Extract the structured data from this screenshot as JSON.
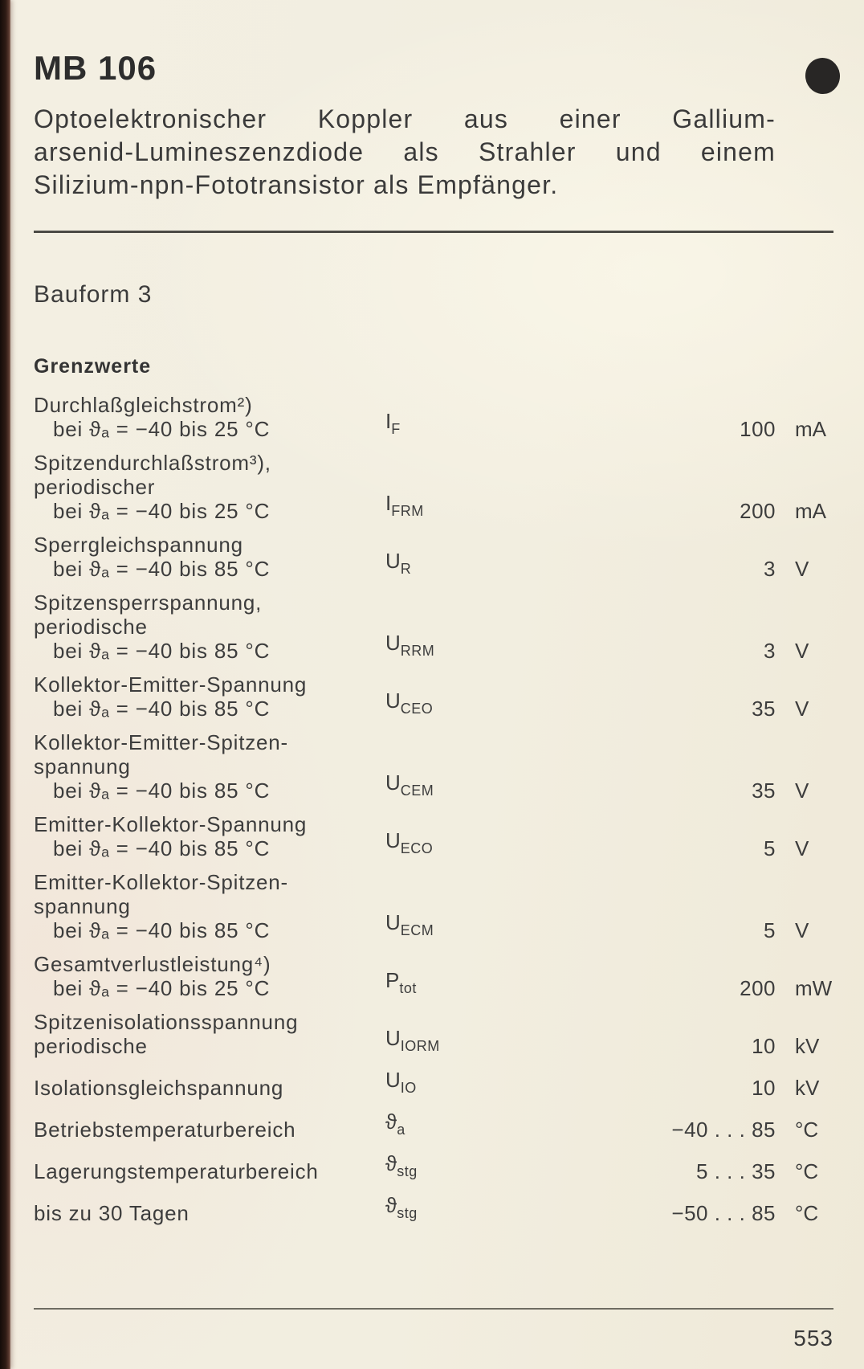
{
  "page": {
    "page_number": "553",
    "paper_color": "#f2eee0",
    "edge_color": "#2e1b15",
    "ink_color": "#3b3b3b"
  },
  "header": {
    "model": "MB 106",
    "description_lines": [
      "Optoelektronischer Koppler aus einer Gallium-",
      "arsenid-Lumineszenzdiode als Strahler und einem",
      "Silizium-npn-Fototransistor als Empfänger."
    ]
  },
  "sections": {
    "bauform": "Bauform 3",
    "grenzwerte_title": "Grenzwerte"
  },
  "icons": {
    "corner_dot": "black-circle-marker"
  },
  "table": {
    "rows": [
      {
        "label_lines": [
          {
            "t": "Durchlaßgleichstrom²)",
            "i": false
          },
          {
            "t": "bei ϑₐ = −40 bis 25 °C",
            "i": true
          }
        ],
        "symbol": {
          "main": "I",
          "sub": "F"
        },
        "value": "100",
        "unit": "mA"
      },
      {
        "label_lines": [
          {
            "t": "Spitzendurchlaßstrom³),",
            "i": false
          },
          {
            "t": "periodischer",
            "i": false
          },
          {
            "t": "bei ϑₐ = −40 bis 25 °C",
            "i": true
          }
        ],
        "symbol": {
          "main": "I",
          "sub": "FRM"
        },
        "value": "200",
        "unit": "mA"
      },
      {
        "label_lines": [
          {
            "t": "Sperrgleichspannung",
            "i": false
          },
          {
            "t": "bei ϑₐ = −40 bis 85 °C",
            "i": true
          }
        ],
        "symbol": {
          "main": "U",
          "sub": "R"
        },
        "value": "3",
        "unit": "V"
      },
      {
        "label_lines": [
          {
            "t": "Spitzensperrspannung,",
            "i": false
          },
          {
            "t": "periodische",
            "i": false
          },
          {
            "t": "bei ϑₐ = −40 bis 85 °C",
            "i": true
          }
        ],
        "symbol": {
          "main": "U",
          "sub": "RRM"
        },
        "value": "3",
        "unit": "V"
      },
      {
        "label_lines": [
          {
            "t": "Kollektor-Emitter-Spannung",
            "i": false
          },
          {
            "t": "bei ϑₐ = −40 bis 85 °C",
            "i": true
          }
        ],
        "symbol": {
          "main": "U",
          "sub": "CEO"
        },
        "value": "35",
        "unit": "V"
      },
      {
        "label_lines": [
          {
            "t": "Kollektor-Emitter-Spitzen-",
            "i": false
          },
          {
            "t": "spannung",
            "i": false
          },
          {
            "t": "bei ϑₐ = −40 bis 85 °C",
            "i": true
          }
        ],
        "symbol": {
          "main": "U",
          "sub": "CEM"
        },
        "value": "35",
        "unit": "V"
      },
      {
        "label_lines": [
          {
            "t": "Emitter-Kollektor-Spannung",
            "i": false
          },
          {
            "t": "bei ϑₐ = −40 bis 85 °C",
            "i": true
          }
        ],
        "symbol": {
          "main": "U",
          "sub": "ECO"
        },
        "value": "5",
        "unit": "V"
      },
      {
        "label_lines": [
          {
            "t": "Emitter-Kollektor-Spitzen-",
            "i": false
          },
          {
            "t": "spannung",
            "i": false
          },
          {
            "t": "bei ϑₐ = −40 bis 85 °C",
            "i": true
          }
        ],
        "symbol": {
          "main": "U",
          "sub": "ECM"
        },
        "value": "5",
        "unit": "V"
      },
      {
        "label_lines": [
          {
            "t": "Gesamtverlustleistung⁴)",
            "i": false
          },
          {
            "t": "bei ϑₐ = −40 bis 25 °C",
            "i": true
          }
        ],
        "symbol": {
          "main": "P",
          "sub": "tot"
        },
        "value": "200",
        "unit": "mW"
      },
      {
        "label_lines": [
          {
            "t": "Spitzenisolationsspannung",
            "i": false
          },
          {
            "t": "periodische",
            "i": false
          }
        ],
        "symbol": {
          "main": "U",
          "sub": "IORM"
        },
        "value": "10",
        "unit": "kV"
      },
      {
        "label_lines": [
          {
            "t": "Isolationsgleichspannung",
            "i": false
          }
        ],
        "symbol": {
          "main": "U",
          "sub": "IO"
        },
        "value": "10",
        "unit": "kV"
      },
      {
        "label_lines": [
          {
            "t": "Betriebstemperaturbereich",
            "i": false
          }
        ],
        "symbol": {
          "main": "ϑ",
          "sub": "a"
        },
        "value": "−40 . . . 85",
        "unit": "°C"
      },
      {
        "label_lines": [
          {
            "t": "Lagerungstemperaturbereich",
            "i": false
          }
        ],
        "symbol": {
          "main": "ϑ",
          "sub": "stg"
        },
        "value": "5 . . . 35",
        "unit": "°C"
      },
      {
        "label_lines": [
          {
            "t": "bis zu 30 Tagen",
            "i": false
          }
        ],
        "symbol": {
          "main": "ϑ",
          "sub": "stg"
        },
        "value": "−50 . . . 85",
        "unit": "°C"
      }
    ]
  }
}
